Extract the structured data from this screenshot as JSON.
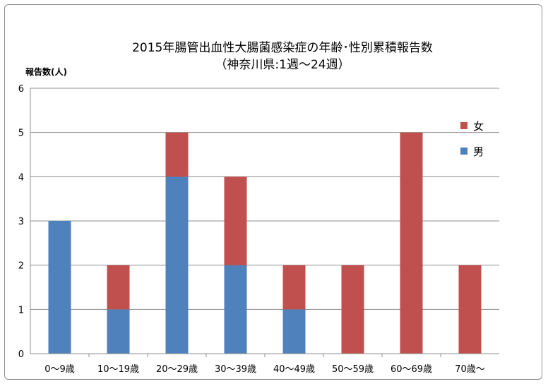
{
  "chart_data": {
    "type": "bar",
    "stacked": true,
    "title": "2015年腸管出血性大腸菌感染症の年齢･性別累積報告数",
    "subtitle": "（神奈川県:1週〜24週）",
    "ylabel": "報告数(人)",
    "xlabel": "",
    "ylim": [
      0,
      6
    ],
    "yticks": [
      0,
      1,
      2,
      3,
      4,
      5,
      6
    ],
    "grid": true,
    "legend_position": "right",
    "categories": [
      "0〜9歳",
      "10〜19歳",
      "20〜29歳",
      "30〜39歳",
      "40〜49歳",
      "50〜59歳",
      "60〜69歳",
      "70歳〜"
    ],
    "series": [
      {
        "name": "男",
        "color": "#4f81bd",
        "values": [
          3,
          1,
          4,
          2,
          1,
          0,
          0,
          0
        ]
      },
      {
        "name": "女",
        "color": "#c0504d",
        "values": [
          0,
          1,
          1,
          2,
          1,
          2,
          5,
          2
        ]
      }
    ],
    "legend_order": [
      "女",
      "男"
    ]
  }
}
